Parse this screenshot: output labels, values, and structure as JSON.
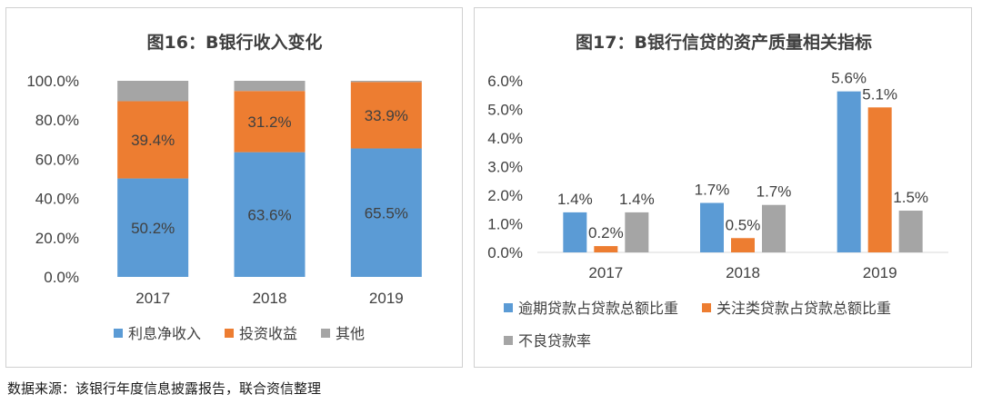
{
  "colors": {
    "blue": "#5b9bd5",
    "orange": "#ed7d31",
    "gray": "#a5a5a5"
  },
  "chart_data": [
    {
      "type": "bar",
      "stacked": true,
      "title": "图16：B银行收入变化",
      "categories": [
        "2017",
        "2018",
        "2019"
      ],
      "ylim": [
        0,
        100
      ],
      "yticks": [
        "0.0%",
        "20.0%",
        "40.0%",
        "60.0%",
        "80.0%",
        "100.0%"
      ],
      "series": [
        {
          "name": "利息净收入",
          "values": [
            50.2,
            63.6,
            65.5
          ],
          "labels": [
            "50.2%",
            "63.6%",
            "65.5%"
          ]
        },
        {
          "name": "投资收益",
          "values": [
            39.4,
            31.2,
            33.9
          ],
          "labels": [
            "39.4%",
            "31.2%",
            "33.9%"
          ]
        },
        {
          "name": "其他",
          "values": [
            10.4,
            5.2,
            0.6
          ],
          "labels": [
            "",
            "",
            ""
          ]
        }
      ],
      "legend": "bottom"
    },
    {
      "type": "bar",
      "stacked": false,
      "title": "图17：B银行信贷的资产质量相关指标",
      "categories": [
        "2017",
        "2018",
        "2019"
      ],
      "ylim": [
        0,
        6
      ],
      "yticks": [
        "0.0%",
        "1.0%",
        "2.0%",
        "3.0%",
        "4.0%",
        "5.0%",
        "6.0%"
      ],
      "series": [
        {
          "name": "逾期贷款占贷款总额比重",
          "values": [
            1.4,
            1.73,
            5.63
          ],
          "labels": [
            "1.4%",
            "1.7%",
            "5.6%"
          ]
        },
        {
          "name": "关注类贷款占贷款总额比重",
          "values": [
            0.22,
            0.5,
            5.07
          ],
          "labels": [
            "0.2%",
            "0.5%",
            "5.1%"
          ]
        },
        {
          "name": "不良贷款率",
          "values": [
            1.4,
            1.66,
            1.46
          ],
          "labels": [
            "1.4%",
            "1.7%",
            "1.5%"
          ]
        }
      ],
      "legend": "bottom"
    }
  ],
  "source": "数据来源：该银行年度信息披露报告，联合资信整理"
}
